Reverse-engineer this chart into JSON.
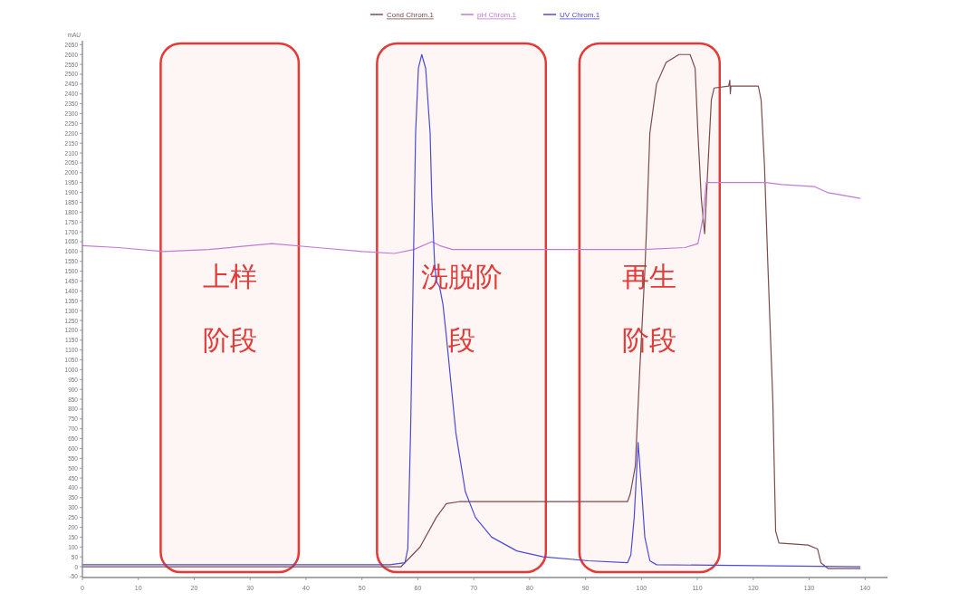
{
  "chart_data": {
    "type": "line",
    "ylabel": "mAU",
    "legend": "top",
    "grid": false,
    "xlim": [
      0,
      144
    ],
    "xticks": [
      0,
      10,
      20,
      30,
      40,
      50,
      60,
      70,
      80,
      90,
      100,
      110,
      120,
      130,
      140
    ],
    "ylim": [
      -55,
      2670
    ],
    "yticks": [
      -50,
      0,
      50,
      100,
      150,
      200,
      250,
      300,
      350,
      400,
      450,
      500,
      550,
      600,
      650,
      700,
      750,
      800,
      850,
      900,
      950,
      1000,
      1050,
      1100,
      1150,
      1200,
      1250,
      1300,
      1350,
      1400,
      1450,
      1500,
      1550,
      1600,
      1650,
      1700,
      1750,
      1800,
      1850,
      1900,
      1950,
      2000,
      2050,
      2100,
      2150,
      2200,
      2250,
      2300,
      2350,
      2400,
      2450,
      2500,
      2550,
      2600,
      2650
    ],
    "series": [
      {
        "name": "Cond Chrom.1",
        "color": "#7d4b4b",
        "x": [
          0,
          57.0,
          60.4,
          63.3,
          65.1,
          67.4,
          97.5,
          98.0,
          98.9,
          99.7,
          100.6,
          100.9,
          101.5,
          102.7,
          104.4,
          106.7,
          108.7,
          109.6,
          110.1,
          110.7,
          111.3,
          111.9,
          112.5,
          113.0,
          115.6,
          115.8,
          115.9,
          116.0,
          120.9,
          121.4,
          122.0,
          122.6,
          123.5,
          124.0,
          124.6,
          129.8,
          131.5,
          132.1,
          133.4,
          139.1
        ],
        "values": [
          0,
          0,
          100,
          250,
          320,
          330,
          330,
          370,
          510,
          1000,
          1500,
          1710,
          2200,
          2450,
          2560,
          2600,
          2600,
          2530,
          2200,
          1870,
          1690,
          2040,
          2370,
          2430,
          2440,
          2470,
          2400,
          2440,
          2440,
          2370,
          2040,
          1540,
          840,
          180,
          120,
          110,
          90,
          20,
          -10,
          -10
        ]
      },
      {
        "name": "pH Chrom.1",
        "color": "#c27ad6",
        "x": [
          0,
          6.4,
          14.5,
          22.6,
          33.9,
          42.0,
          50.1,
          55.8,
          59.3,
          62.5,
          63.9,
          66.2,
          84.7,
          100.3,
          107.8,
          110.1,
          111.0,
          111.6,
          113.6,
          122.2,
          125.1,
          130.9,
          133.2,
          139.1
        ],
        "values": [
          1630,
          1620,
          1600,
          1610,
          1640,
          1620,
          1600,
          1590,
          1610,
          1650,
          1630,
          1610,
          1610,
          1610,
          1620,
          1640,
          1770,
          1950,
          1950,
          1950,
          1940,
          1930,
          1900,
          1870
        ]
      },
      {
        "name": "UV Chrom.1",
        "color": "#4b4bd6",
        "x": [
          0,
          33.9,
          55.0,
          57.7,
          58.2,
          58.7,
          59.6,
          60.1,
          60.7,
          61.4,
          62.2,
          62.5,
          63.0,
          63.3,
          63.9,
          64.5,
          65.1,
          66.8,
          68.5,
          70.3,
          73.2,
          77.7,
          82.4,
          90.5,
          97.5,
          98.1,
          98.7,
          99.4,
          100.0,
          100.6,
          101.5,
          102.7,
          139.1
        ],
        "values": [
          10,
          10,
          10,
          20,
          90,
          680,
          2200,
          2530,
          2600,
          2530,
          2200,
          1870,
          1540,
          1450,
          1420,
          1330,
          1170,
          680,
          380,
          250,
          150,
          80,
          50,
          30,
          20,
          60,
          250,
          630,
          400,
          150,
          30,
          10,
          0
        ]
      }
    ],
    "bands": [
      {
        "axis": "x",
        "from": 14.0,
        "to": 38.7,
        "label": "上样阶段",
        "color": "#e53935"
      },
      {
        "axis": "x",
        "from": 52.7,
        "to": 82.9,
        "label": "洗脱阶段",
        "color": "#e53935"
      },
      {
        "axis": "x",
        "from": 88.9,
        "to": 114.0,
        "label": "再生阶段",
        "color": "#e53935"
      }
    ]
  }
}
